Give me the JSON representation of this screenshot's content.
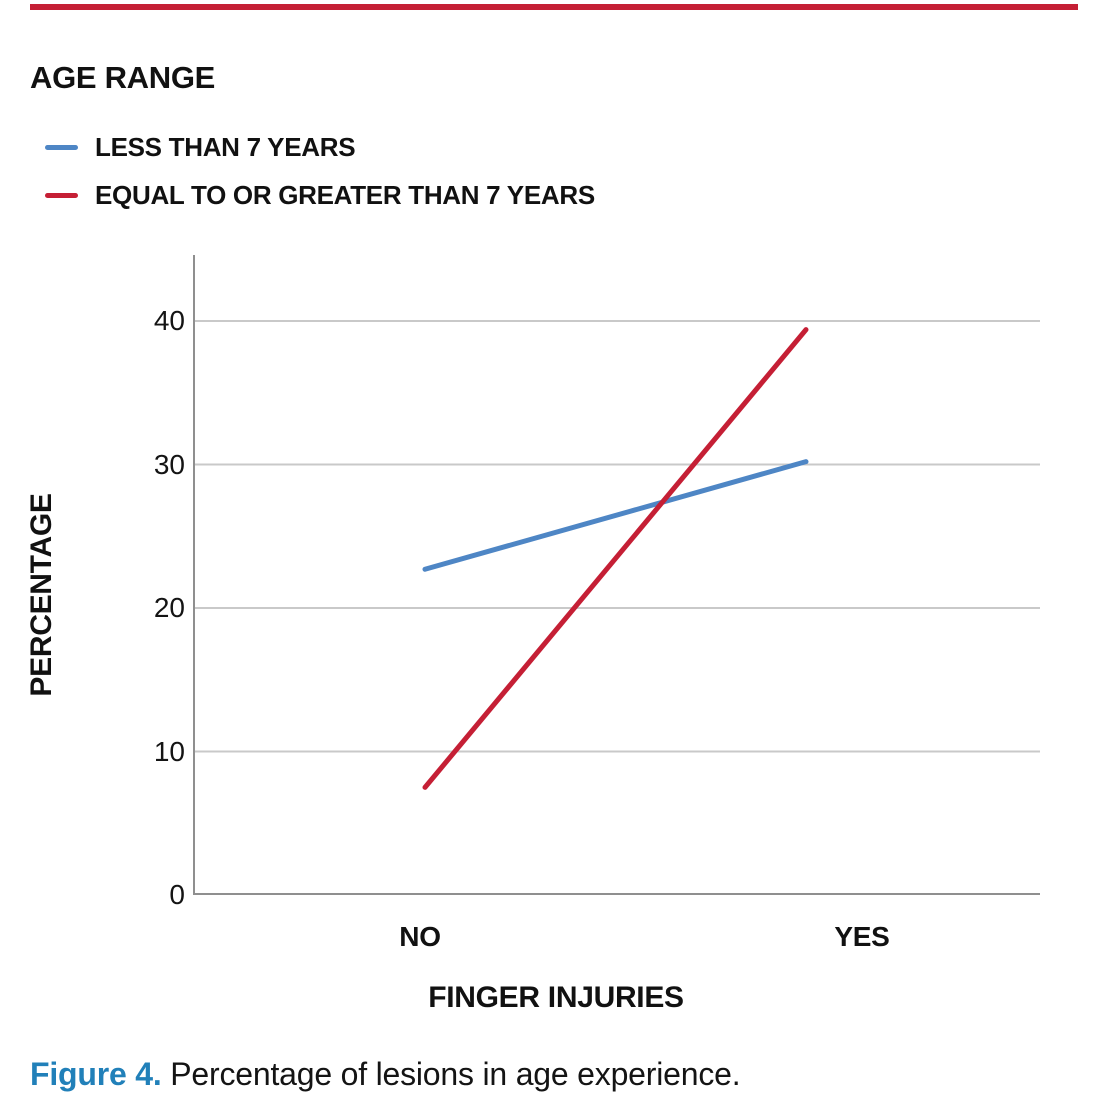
{
  "page": {
    "top_rule_color": "#C51F35",
    "background": "#ffffff"
  },
  "chart": {
    "legend_title": "AGE RANGE",
    "axis_line_color": "#8F8F8F",
    "gridline_color": "#C9C9C9"
  },
  "chart_data": {
    "type": "line",
    "title": "AGE RANGE",
    "categories": [
      "NO",
      "YES"
    ],
    "series": [
      {
        "name": "LESS THAN 7 YEARS",
        "color": "#4E86C5",
        "values": [
          22.7,
          30.2
        ]
      },
      {
        "name": "EQUAL TO OR GREATER THAN 7 YEARS",
        "color": "#C51F35",
        "values": [
          7.5,
          39.4
        ]
      }
    ],
    "xlabel": "FINGER INJURIES",
    "ylabel": "PERCENTAGE",
    "yticks": [
      0,
      10,
      20,
      30,
      40
    ],
    "ylim": [
      0,
      44.6
    ],
    "grid": true,
    "legend_position": "top-left"
  },
  "caption": {
    "label": "Figure 4.",
    "text": " Percentage of lesions in age experience.",
    "label_color": "#2180B9"
  }
}
